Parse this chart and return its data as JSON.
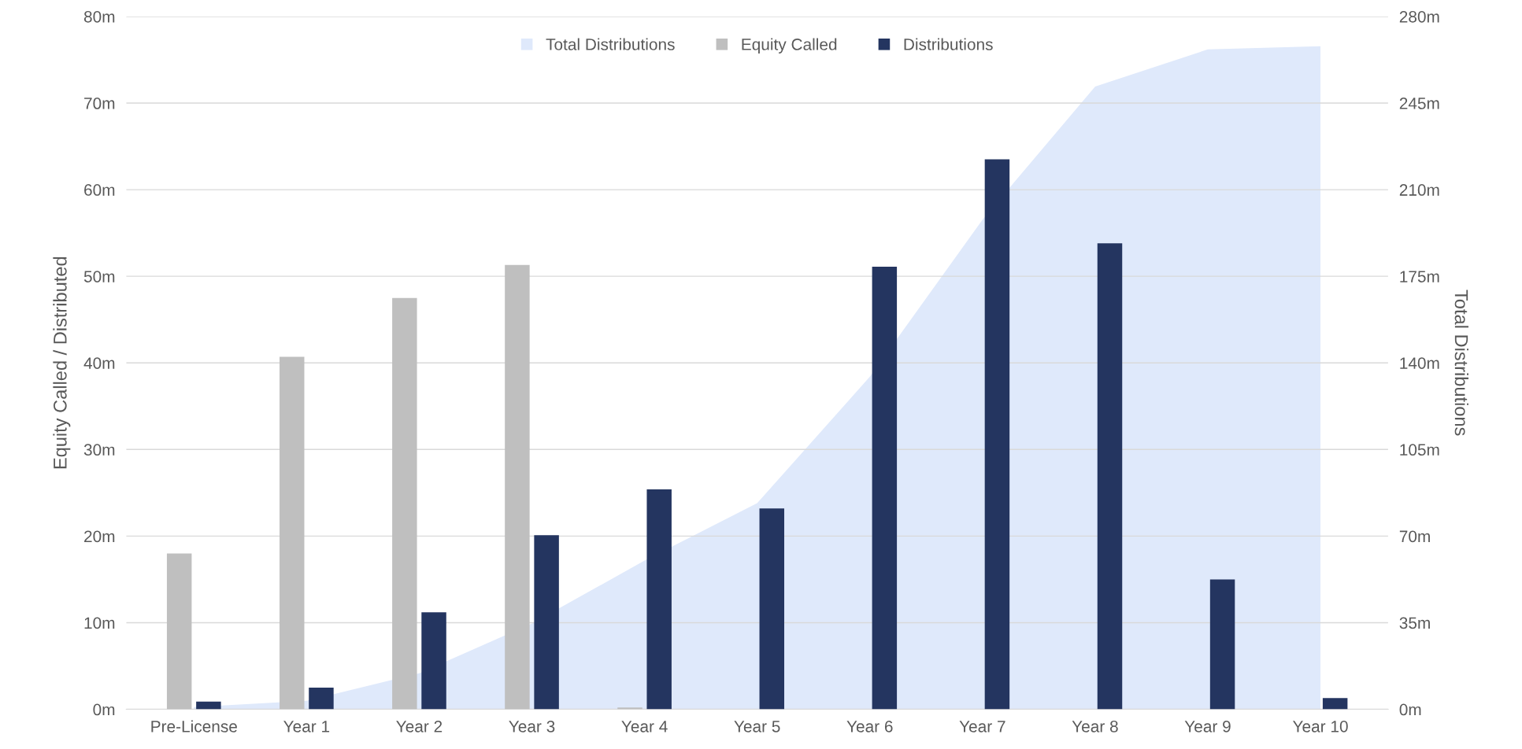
{
  "chart_data": {
    "type": "bar",
    "categories": [
      "Pre-License",
      "Year 1",
      "Year 2",
      "Year 3",
      "Year 4",
      "Year 5",
      "Year 6",
      "Year 7",
      "Year 8",
      "Year 9",
      "Year 10"
    ],
    "series": [
      {
        "name": "Total Distributions",
        "type": "area",
        "axis": "y2",
        "color": "#dfe9fb",
        "values": [
          0.9,
          3.4,
          14.6,
          34.7,
          60.1,
          83.3,
          134.4,
          197.9,
          251.7,
          266.7,
          268.0
        ]
      },
      {
        "name": "Equity Called",
        "color": "#bfbfbf",
        "values": [
          18.0,
          40.7,
          47.5,
          51.3,
          0.2,
          null,
          null,
          null,
          null,
          null,
          null
        ]
      },
      {
        "name": "Distributions",
        "color": "#243560",
        "values": [
          0.9,
          2.5,
          11.2,
          20.1,
          25.4,
          23.2,
          51.1,
          63.5,
          53.8,
          15.0,
          1.3
        ]
      }
    ],
    "ylabel": "Equity Called / Distributed",
    "y2label": "Total Distributions",
    "ylim": [
      0,
      80
    ],
    "yticks": [
      {
        "value": 0,
        "label": "0m"
      },
      {
        "value": 10,
        "label": "10m"
      },
      {
        "value": 20,
        "label": "20m"
      },
      {
        "value": 30,
        "label": "30m"
      },
      {
        "value": 40,
        "label": "40m"
      },
      {
        "value": 50,
        "label": "50m"
      },
      {
        "value": 60,
        "label": "60m"
      },
      {
        "value": 70,
        "label": "70m"
      },
      {
        "value": 80,
        "label": "80m"
      }
    ],
    "y2lim": [
      0,
      280
    ],
    "y2ticks": [
      {
        "value": 0,
        "label": "0m"
      },
      {
        "value": 35,
        "label": "35m"
      },
      {
        "value": 70,
        "label": "70m"
      },
      {
        "value": 105,
        "label": "105m"
      },
      {
        "value": 140,
        "label": "140m"
      },
      {
        "value": 175,
        "label": "175m"
      },
      {
        "value": 210,
        "label": "210m"
      },
      {
        "value": 245,
        "label": "245m"
      },
      {
        "value": 280,
        "label": "280m"
      }
    ],
    "grid": "y",
    "legend": "top"
  }
}
